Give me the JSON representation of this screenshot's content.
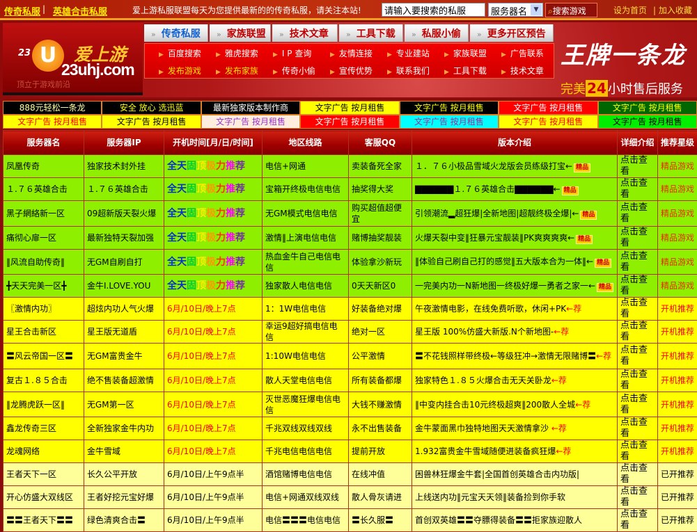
{
  "topbar": {
    "link1": "传奇私服",
    "separator": "|",
    "link2": "英雄合击私服",
    "notice": "爱上游私服联盟每天为您提供最新的的传奇私服，请关注本站!",
    "search_placeholder": "请输入要搜索的私服",
    "select_value": "服务器名",
    "search_button": "搜索游戏",
    "set_home": "设为首页",
    "bookmark": "| 加入收藏"
  },
  "logo": {
    "num": "23",
    "u": "U",
    "cn": "爱上游",
    "domain": "23uhj.com",
    "slogan": "顶立于游戏前沿"
  },
  "nav_tabs": [
    {
      "label": "传奇私服",
      "color": "#1060d0"
    },
    {
      "label": "家族联盟",
      "color": "#c00000"
    },
    {
      "label": "技术文章",
      "color": "#c00000"
    },
    {
      "label": "工具下载",
      "color": "#c00000"
    },
    {
      "label": "私服小偷",
      "color": "#c00000"
    },
    {
      "label": "更多开区预告",
      "color": "#c00000"
    }
  ],
  "quick_links": [
    [
      "百度搜索",
      "雅虎搜索",
      "I P 查询",
      "友情连接",
      "专业建站",
      "家族联盟",
      "广告联系"
    ],
    [
      "发布游戏",
      "发布家族",
      "传奇小偷",
      "宣传优势",
      "联系我们",
      "工具下载",
      "技术文章"
    ]
  ],
  "banner": {
    "brand": "王牌一条龙",
    "tag_pre": "完美",
    "tag_num": "24",
    "tag_post": "小时售后服务"
  },
  "ads": [
    [
      {
        "text": "888元轻松一条龙",
        "bg": "#000000",
        "fg": "#ffffa0"
      },
      {
        "text": "安全 放心 选迅蓝",
        "bg": "#000000",
        "fg": "#ffff00"
      },
      {
        "text": "最新独家版本制作商",
        "bg": "#000000",
        "fg": "#ffffff"
      },
      {
        "text": "文字广告 按月租售",
        "bg": "#ffff00",
        "fg": "#000000"
      },
      {
        "text": "文字广告 按月租售",
        "bg": "#000000",
        "fg": "#ffff00"
      },
      {
        "text": "文字广告 按月租售",
        "bg": "#ff0000",
        "fg": "#ffffff"
      },
      {
        "text": "文字广告 按月租售",
        "bg": "#006600",
        "fg": "#ffff00"
      }
    ],
    [
      {
        "text": "文字广告 按月租售",
        "bg": "#ffff00",
        "fg": "#ff0000"
      },
      {
        "text": "文字广告 按月租售",
        "bg": "#ffff00",
        "fg": "#000000"
      },
      {
        "text": "文字广告 按月租售",
        "bg": "#ffeedd",
        "fg": "#9933cc"
      },
      {
        "text": "文字广告 按月租售",
        "bg": "#ff0000",
        "fg": "#ffffff"
      },
      {
        "text": "文字广告 按月租售",
        "bg": "#00ffff",
        "fg": "#993399"
      },
      {
        "text": "文字广告 按月租售",
        "bg": "#ffff00",
        "fg": "#ff0000"
      },
      {
        "text": "文字广告 按月租售",
        "bg": "#00ee00",
        "fg": "#000000"
      }
    ]
  ],
  "table": {
    "headers": [
      "服务器名",
      "服务器IP",
      "开机时间[月/日/时间]",
      "地区线路",
      "客服QQ",
      "版本介绍",
      "详细介绍",
      "推荐星级"
    ],
    "pinned_text": "全天固顶极力推荐",
    "pinned_colors": [
      "#0033cc",
      "#0033cc",
      "#00cc33",
      "#ffee00",
      "#ff9900",
      "#ff3300",
      "#ff00ff",
      "#7030a0"
    ],
    "badge_jingpin": "精品",
    "badge_jian": "←荐",
    "rows": [
      {
        "style": "g",
        "name": "凤凰传奇",
        "ip": "独家技术封外挂",
        "time": "",
        "line": "电信+网通",
        "qq": "卖装备死全家",
        "intro": "１．７６小极品雪域火龙版会员练级打宝←",
        "badge": "jp",
        "detail": "点击查看",
        "rating": "精品游戏"
      },
      {
        "style": "g",
        "name": "１.７６英雄合击",
        "ip": "１.７６英雄合击",
        "time": "",
        "line": "宝箱开终极电信电信",
        "qq": "抽奖得大奖",
        "intro": "▇▇▇▇▇▇１.７６英雄合击▇▇▇▇▇▇←",
        "badge": "jp",
        "detail": "点击查看",
        "rating": "精品游戏"
      },
      {
        "style": "g",
        "name": "黑子網絡新一区",
        "ip": "09超新版天裂火爆",
        "time": "",
        "line": "无GM模式电信电信",
        "qq": "购买超值超便宜",
        "intro": "引领潮流▂超狂爆|全新地图|超靓终极全爆|←",
        "badge": "jp",
        "detail": "点击查看",
        "rating": "精品游戏"
      },
      {
        "style": "g",
        "name": "痛彻心扉一区",
        "ip": "最新独特天裂加强",
        "time": "",
        "line": "激情‖上演电信电信",
        "qq": "赌博抽奖靓装",
        "intro": "火爆天裂中变‖狂暴元宝靓装‖PK爽爽爽爽←",
        "badge": "jp",
        "detail": "点击查看",
        "rating": "精品游戏"
      },
      {
        "style": "g",
        "name": "‖风流自助传奇‖",
        "ip": "无GM自刷自打",
        "time": "",
        "line": "热血金牛自己电信电信",
        "qq": "体验拿沙新玩",
        "intro": "‖体验自己刷自己打的感觉‖五大版本合为一体‖←",
        "badge": "jp",
        "detail": "点击查看",
        "rating": "精品游戏"
      },
      {
        "style": "g",
        "name": "╋天天完美一区╋",
        "ip": "金牛I.LOVE.YOU",
        "time": "",
        "line": "独家散人电信电信",
        "qq": "0天天新区0",
        "intro": "一完美内功一N新地图一终极好爆一勇者之家一←",
        "badge": "jp",
        "detail": "点击查看",
        "rating": "精品游戏"
      },
      {
        "style": "y",
        "name": "〖激情内功〗",
        "ip": "超炫内功人气火爆",
        "time": "6月/10日/晚上7点",
        "line": "1：1W电信电信",
        "qq": "好装备绝对爆",
        "intro": "午夜激情电影，在线免费听歌，休闲+PK",
        "badge": "jian",
        "detail": "点击查看",
        "rating": "开机推荐"
      },
      {
        "style": "y",
        "name": "星王合击新区",
        "ip": "星王版无道盾",
        "time": "6月/10日/晚上7点",
        "line": "幸运9超好搞电信电信",
        "qq": "绝对一区",
        "intro": "星王版 100%仿盛大新版.N个新地图-",
        "badge": "jian",
        "detail": "点击查看",
        "rating": "开机推荐"
      },
      {
        "style": "y",
        "name": "〓风云帝国一区〓",
        "ip": "无GM富贵金牛",
        "time": "6月/10日/晚上7点",
        "line": "1:10W电信电信",
        "qq": "公平激情",
        "intro": "〓不花钱照样带终极←等级狂冲→激情无限赌博〓",
        "badge": "jian",
        "detail": "点击查看",
        "rating": "开机推荐"
      },
      {
        "style": "y",
        "name": "复古１.８５合击",
        "ip": "绝不售装备超激情",
        "time": "6月/10日/晚上7点",
        "line": "散人天堂电信电信",
        "qq": "所有装备都爆",
        "intro": "独家特色１.８５火爆合击无天关卧龙",
        "badge": "jian",
        "detail": "点击查看",
        "rating": "开机推荐"
      },
      {
        "style": "y",
        "name": "‖龙腾虎跃一区‖",
        "ip": "无GM第一区",
        "time": "6月/10日/晚上7点",
        "line": "灭世恶魔狂爆电信电信",
        "qq": "大钱不赚激情",
        "intro": "‖中变内挂合击10元终极超爽‖200散人全城",
        "badge": "jian",
        "detail": "点击查看",
        "rating": "开机推荐"
      },
      {
        "style": "y",
        "name": "鑫龙传奇三区",
        "ip": "全新独家金牛内功",
        "time": "6月/10日/晚上7点",
        "line": "千兆双线双线双线",
        "qq": "永不出售装备",
        "intro": "金牛蒙面黑巾独特地图天天激情拿沙 ",
        "badge": "jian",
        "detail": "点击查看",
        "rating": "开机推荐"
      },
      {
        "style": "y",
        "name": "龙魂网络",
        "ip": "金牛雪域",
        "time": "6月/10日/晚上7点",
        "line": "千兆电信电信电信",
        "qq": "提前开放",
        "intro": "1.932富贵金牛雪域随便进装备疯狂爆",
        "badge": "jian",
        "detail": "点击查看",
        "rating": "开机推荐"
      },
      {
        "style": "l",
        "name": "王者天下一区",
        "ip": "长久公平开放",
        "time": "6月/10日/上午9点半",
        "line": "酒馆赌博电信电信",
        "qq": "在线冲值",
        "intro": "困兽林狂爆金牛套|全国首创英雄合击内功版|",
        "badge": "",
        "detail": "点击查看",
        "rating": "已开推荐"
      },
      {
        "style": "l",
        "name": "开心仿盛大双线区",
        "ip": "王者好挖元宝好爆",
        "time": "6月/10日/上午9点半",
        "line": "电信+网通双线双线",
        "qq": "散人骨灰请进",
        "intro": "上线送内功‖元宝天天领‖装备捡到你手软",
        "badge": "",
        "detail": "点击查看",
        "rating": "已开推荐"
      },
      {
        "style": "l",
        "name": "〓〓王者天下〓〓",
        "ip": "绿色清爽合击〓",
        "time": "6月/10日/上午9点半",
        "line": "电信〓〓〓电信电信",
        "qq": "〓长久服〓",
        "intro": "首创双英雄〓〓夺膘得装备〓〓拒家族迎散人",
        "badge": "",
        "detail": "点击查看",
        "rating": "已开推荐"
      }
    ]
  }
}
